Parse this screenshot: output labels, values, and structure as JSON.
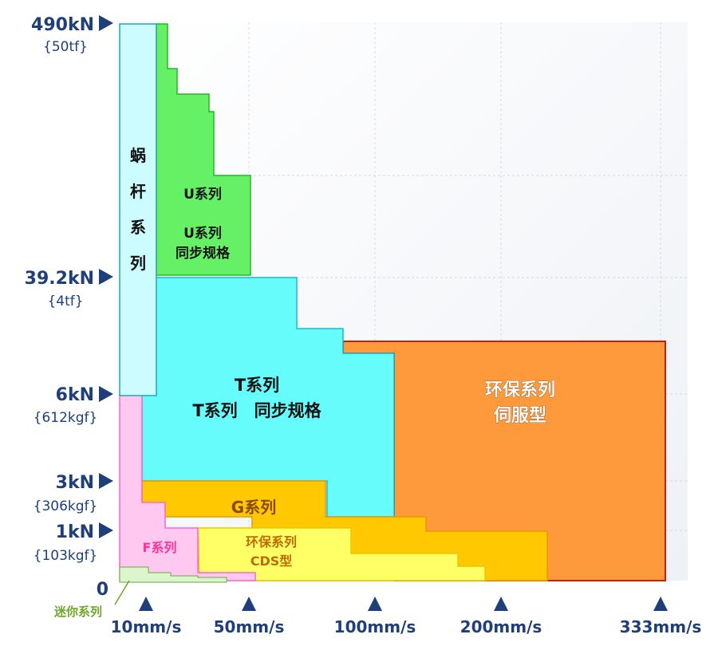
{
  "y_axis": {
    "ticks": [
      {
        "label": "490kN",
        "sub": "{50tf}"
      },
      {
        "label": "39.2kN",
        "sub": "{4tf}"
      },
      {
        "label": "6kN",
        "sub": "{612kgf}"
      },
      {
        "label": "3kN",
        "sub": "{306kgf}"
      },
      {
        "label": "1kN",
        "sub": "{103kgf}"
      },
      {
        "label": "0",
        "sub": ""
      }
    ]
  },
  "x_axis": {
    "ticks": [
      "10mm/s",
      "50mm/s",
      "100mm/s",
      "200mm/s",
      "333mm/s"
    ]
  },
  "regions": {
    "worm": [
      "蜗",
      "杆",
      "系",
      "列"
    ],
    "u_series": "U系列",
    "u_sync": [
      "U系列",
      "同步规格"
    ],
    "t_series": "T系列",
    "t_sync": "T系列　同步规格",
    "eco_servo": [
      "环保系列",
      "伺服型"
    ],
    "g_series": "G系列",
    "eco_cds": [
      "环保系列",
      "CDS型"
    ],
    "f_series": "F系列",
    "mini": "迷你系列"
  },
  "colors": {
    "worm": "#ccfcff",
    "u": "#66f066",
    "t": "#66fcfc",
    "eco_servo": "#ff9a3c",
    "g": "#ffc800",
    "eco_cds": "#ffff66",
    "f": "#ffc8f0",
    "mini": "#ddf5cc",
    "label_blue": "#1f3f7a",
    "label_pink": "#ff3399",
    "label_orange_dark": "#b85a00",
    "mini_label": "#6fa82a"
  }
}
